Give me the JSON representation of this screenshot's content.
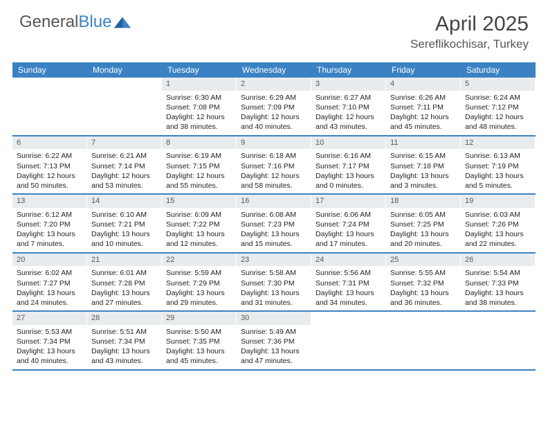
{
  "logo": {
    "text1": "General",
    "text2": "Blue"
  },
  "title": "April 2025",
  "location": "Sereflikochisar, Turkey",
  "colors": {
    "header_bg": "#3b82c4",
    "header_text": "#ffffff",
    "daynum_bg": "#e9ecef",
    "text": "#222222",
    "title_text": "#444444"
  },
  "day_names": [
    "Sunday",
    "Monday",
    "Tuesday",
    "Wednesday",
    "Thursday",
    "Friday",
    "Saturday"
  ],
  "weeks": [
    [
      null,
      null,
      {
        "n": "1",
        "sr": "Sunrise: 6:30 AM",
        "ss": "Sunset: 7:08 PM",
        "dl": "Daylight: 12 hours and 38 minutes."
      },
      {
        "n": "2",
        "sr": "Sunrise: 6:29 AM",
        "ss": "Sunset: 7:09 PM",
        "dl": "Daylight: 12 hours and 40 minutes."
      },
      {
        "n": "3",
        "sr": "Sunrise: 6:27 AM",
        "ss": "Sunset: 7:10 PM",
        "dl": "Daylight: 12 hours and 43 minutes."
      },
      {
        "n": "4",
        "sr": "Sunrise: 6:26 AM",
        "ss": "Sunset: 7:11 PM",
        "dl": "Daylight: 12 hours and 45 minutes."
      },
      {
        "n": "5",
        "sr": "Sunrise: 6:24 AM",
        "ss": "Sunset: 7:12 PM",
        "dl": "Daylight: 12 hours and 48 minutes."
      }
    ],
    [
      {
        "n": "6",
        "sr": "Sunrise: 6:22 AM",
        "ss": "Sunset: 7:13 PM",
        "dl": "Daylight: 12 hours and 50 minutes."
      },
      {
        "n": "7",
        "sr": "Sunrise: 6:21 AM",
        "ss": "Sunset: 7:14 PM",
        "dl": "Daylight: 12 hours and 53 minutes."
      },
      {
        "n": "8",
        "sr": "Sunrise: 6:19 AM",
        "ss": "Sunset: 7:15 PM",
        "dl": "Daylight: 12 hours and 55 minutes."
      },
      {
        "n": "9",
        "sr": "Sunrise: 6:18 AM",
        "ss": "Sunset: 7:16 PM",
        "dl": "Daylight: 12 hours and 58 minutes."
      },
      {
        "n": "10",
        "sr": "Sunrise: 6:16 AM",
        "ss": "Sunset: 7:17 PM",
        "dl": "Daylight: 13 hours and 0 minutes."
      },
      {
        "n": "11",
        "sr": "Sunrise: 6:15 AM",
        "ss": "Sunset: 7:18 PM",
        "dl": "Daylight: 13 hours and 3 minutes."
      },
      {
        "n": "12",
        "sr": "Sunrise: 6:13 AM",
        "ss": "Sunset: 7:19 PM",
        "dl": "Daylight: 13 hours and 5 minutes."
      }
    ],
    [
      {
        "n": "13",
        "sr": "Sunrise: 6:12 AM",
        "ss": "Sunset: 7:20 PM",
        "dl": "Daylight: 13 hours and 7 minutes."
      },
      {
        "n": "14",
        "sr": "Sunrise: 6:10 AM",
        "ss": "Sunset: 7:21 PM",
        "dl": "Daylight: 13 hours and 10 minutes."
      },
      {
        "n": "15",
        "sr": "Sunrise: 6:09 AM",
        "ss": "Sunset: 7:22 PM",
        "dl": "Daylight: 13 hours and 12 minutes."
      },
      {
        "n": "16",
        "sr": "Sunrise: 6:08 AM",
        "ss": "Sunset: 7:23 PM",
        "dl": "Daylight: 13 hours and 15 minutes."
      },
      {
        "n": "17",
        "sr": "Sunrise: 6:06 AM",
        "ss": "Sunset: 7:24 PM",
        "dl": "Daylight: 13 hours and 17 minutes."
      },
      {
        "n": "18",
        "sr": "Sunrise: 6:05 AM",
        "ss": "Sunset: 7:25 PM",
        "dl": "Daylight: 13 hours and 20 minutes."
      },
      {
        "n": "19",
        "sr": "Sunrise: 6:03 AM",
        "ss": "Sunset: 7:26 PM",
        "dl": "Daylight: 13 hours and 22 minutes."
      }
    ],
    [
      {
        "n": "20",
        "sr": "Sunrise: 6:02 AM",
        "ss": "Sunset: 7:27 PM",
        "dl": "Daylight: 13 hours and 24 minutes."
      },
      {
        "n": "21",
        "sr": "Sunrise: 6:01 AM",
        "ss": "Sunset: 7:28 PM",
        "dl": "Daylight: 13 hours and 27 minutes."
      },
      {
        "n": "22",
        "sr": "Sunrise: 5:59 AM",
        "ss": "Sunset: 7:29 PM",
        "dl": "Daylight: 13 hours and 29 minutes."
      },
      {
        "n": "23",
        "sr": "Sunrise: 5:58 AM",
        "ss": "Sunset: 7:30 PM",
        "dl": "Daylight: 13 hours and 31 minutes."
      },
      {
        "n": "24",
        "sr": "Sunrise: 5:56 AM",
        "ss": "Sunset: 7:31 PM",
        "dl": "Daylight: 13 hours and 34 minutes."
      },
      {
        "n": "25",
        "sr": "Sunrise: 5:55 AM",
        "ss": "Sunset: 7:32 PM",
        "dl": "Daylight: 13 hours and 36 minutes."
      },
      {
        "n": "26",
        "sr": "Sunrise: 5:54 AM",
        "ss": "Sunset: 7:33 PM",
        "dl": "Daylight: 13 hours and 38 minutes."
      }
    ],
    [
      {
        "n": "27",
        "sr": "Sunrise: 5:53 AM",
        "ss": "Sunset: 7:34 PM",
        "dl": "Daylight: 13 hours and 40 minutes."
      },
      {
        "n": "28",
        "sr": "Sunrise: 5:51 AM",
        "ss": "Sunset: 7:34 PM",
        "dl": "Daylight: 13 hours and 43 minutes."
      },
      {
        "n": "29",
        "sr": "Sunrise: 5:50 AM",
        "ss": "Sunset: 7:35 PM",
        "dl": "Daylight: 13 hours and 45 minutes."
      },
      {
        "n": "30",
        "sr": "Sunrise: 5:49 AM",
        "ss": "Sunset: 7:36 PM",
        "dl": "Daylight: 13 hours and 47 minutes."
      },
      null,
      null,
      null
    ]
  ]
}
